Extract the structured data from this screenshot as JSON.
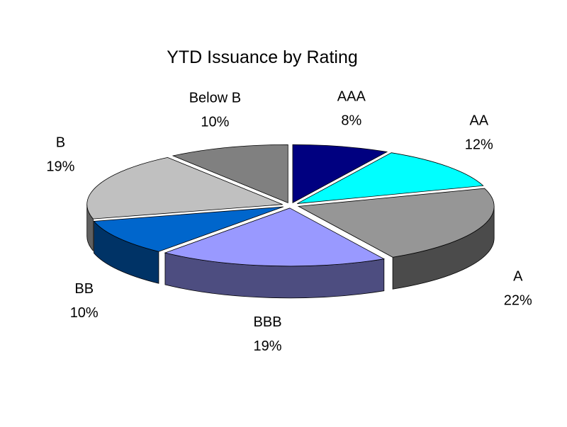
{
  "chart_data": {
    "type": "pie",
    "title": "YTD Issuance by Rating",
    "categories": [
      "AAA",
      "AA",
      "A",
      "BBB",
      "BB",
      "B",
      "Below B"
    ],
    "values": [
      8,
      12,
      22,
      19,
      10,
      19,
      10
    ],
    "value_labels": [
      "8%",
      "12%",
      "22%",
      "19%",
      "10%",
      "19%",
      "10%"
    ],
    "colors": [
      "#000080",
      "#00ffff",
      "#969696",
      "#9999ff",
      "#0066cc",
      "#c0c0c0",
      "#808080"
    ],
    "style": "3d-exploded",
    "legend": "none"
  }
}
